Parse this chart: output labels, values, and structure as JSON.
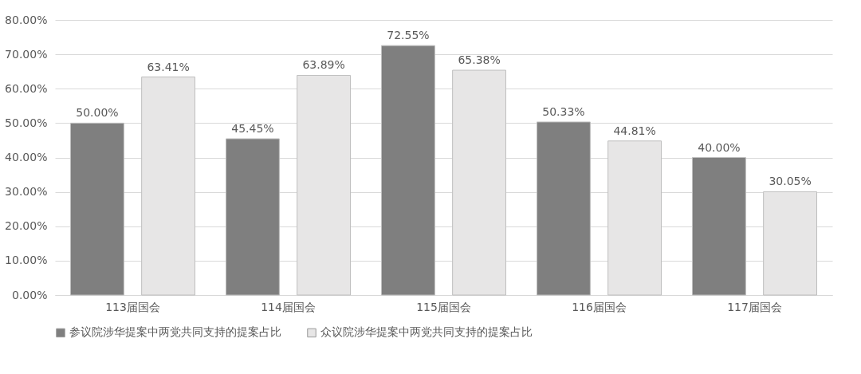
{
  "chart_data": {
    "type": "bar",
    "categories": [
      "113届国会",
      "114届国会",
      "115届国会",
      "116届国会",
      "117届国会"
    ],
    "series": [
      {
        "name": "参议院涉华提案中两党共同支持的提案占比",
        "color": "#7f7f7f",
        "values": [
          50.0,
          45.45,
          72.55,
          50.33,
          40.0
        ],
        "value_labels": [
          "50.00%",
          "45.45%",
          "72.55%",
          "50.33%",
          "40.00%"
        ]
      },
      {
        "name": "众议院涉华提案中两党共同支持的提案占比",
        "color": "#e7e6e6",
        "values": [
          63.41,
          63.89,
          65.38,
          44.81,
          30.05
        ],
        "value_labels": [
          "63.41%",
          "63.89%",
          "65.38%",
          "44.81%",
          "30.05%"
        ]
      }
    ],
    "ylim": [
      0,
      80
    ],
    "yticks": [
      {
        "value": 0,
        "label": "0.00%"
      },
      {
        "value": 10,
        "label": "10.00%"
      },
      {
        "value": 20,
        "label": "20.00%"
      },
      {
        "value": 30,
        "label": "30.00%"
      },
      {
        "value": 40,
        "label": "40.00%"
      },
      {
        "value": 50,
        "label": "50.00%"
      },
      {
        "value": 60,
        "label": "60.00%"
      },
      {
        "value": 70,
        "label": "70.00%"
      },
      {
        "value": 80,
        "label": "80.00%"
      }
    ],
    "grid": "y",
    "legend": "bottom"
  }
}
